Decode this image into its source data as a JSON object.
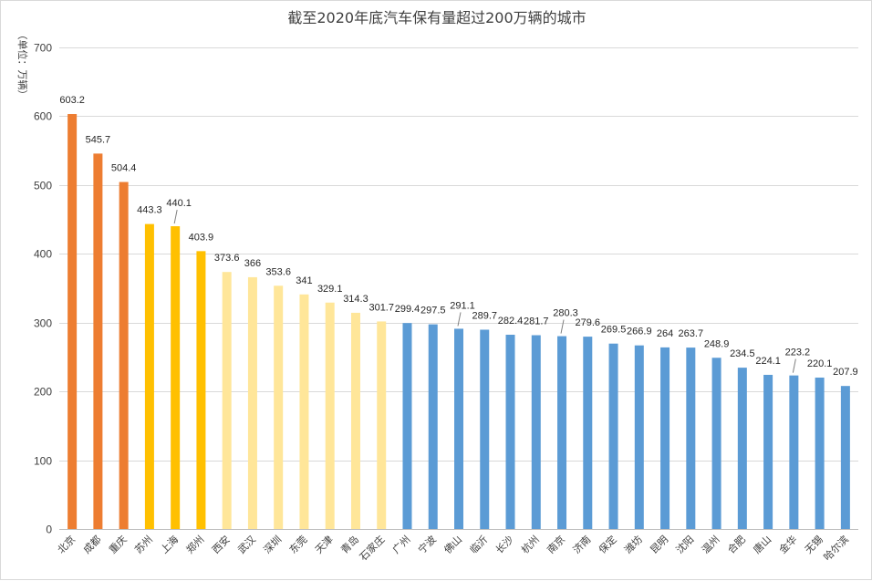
{
  "chart_data": {
    "type": "bar",
    "title": "截至2020年底汽车保有量超过200万辆的城市",
    "ylabel": "（单位：万辆）",
    "xlabel": "",
    "ylim": [
      0,
      700
    ],
    "yticks": [
      0,
      100,
      200,
      300,
      400,
      500,
      600,
      700
    ],
    "grid": true,
    "legend": "none",
    "categories": [
      "北京",
      "成都",
      "重庆",
      "苏州",
      "上海",
      "郑州",
      "西安",
      "武汉",
      "深圳",
      "东莞",
      "天津",
      "青岛",
      "石家庄",
      "广州",
      "宁波",
      "佛山",
      "临沂",
      "长沙",
      "杭州",
      "南京",
      "济南",
      "保定",
      "潍坊",
      "昆明",
      "沈阳",
      "温州",
      "合肥",
      "唐山",
      "金华",
      "无锡",
      "哈尔滨"
    ],
    "values": [
      603.2,
      545.7,
      504.4,
      443.3,
      440.1,
      403.9,
      373.6,
      366,
      353.6,
      341,
      329.1,
      314.3,
      301.7,
      299.4,
      297.5,
      291.1,
      289.7,
      282.4,
      281.7,
      280.3,
      279.6,
      269.5,
      266.9,
      264,
      263.7,
      248.9,
      234.5,
      224.1,
      223.2,
      220.1,
      207.9
    ],
    "data_labels": [
      "603.2",
      "545.7",
      "504.4",
      "443.3",
      "440.1",
      "403.9",
      "373.6",
      "366",
      "353.6",
      "341",
      "329.1",
      "314.3",
      "301.7",
      "299.4",
      "297.5",
      "291.1",
      "289.7",
      "282.4",
      "281.7",
      "280.3",
      "279.6",
      "269.5",
      "266.9",
      "264",
      "263.7",
      "248.9",
      "234.5",
      "224.1",
      "223.2",
      "220.1",
      "207.9"
    ],
    "tier_colors": {
      "tier1": "#ED7D31",
      "tier2": "#FFC000",
      "tier3": "#FFE699",
      "tier4": "#5B9BD5"
    },
    "bar_tiers": [
      "tier1",
      "tier1",
      "tier1",
      "tier2",
      "tier2",
      "tier2",
      "tier3",
      "tier3",
      "tier3",
      "tier3",
      "tier3",
      "tier3",
      "tier3",
      "tier4",
      "tier4",
      "tier4",
      "tier4",
      "tier4",
      "tier4",
      "tier4",
      "tier4",
      "tier4",
      "tier4",
      "tier4",
      "tier4",
      "tier4",
      "tier4",
      "tier4",
      "tier4",
      "tier4",
      "tier4"
    ]
  }
}
